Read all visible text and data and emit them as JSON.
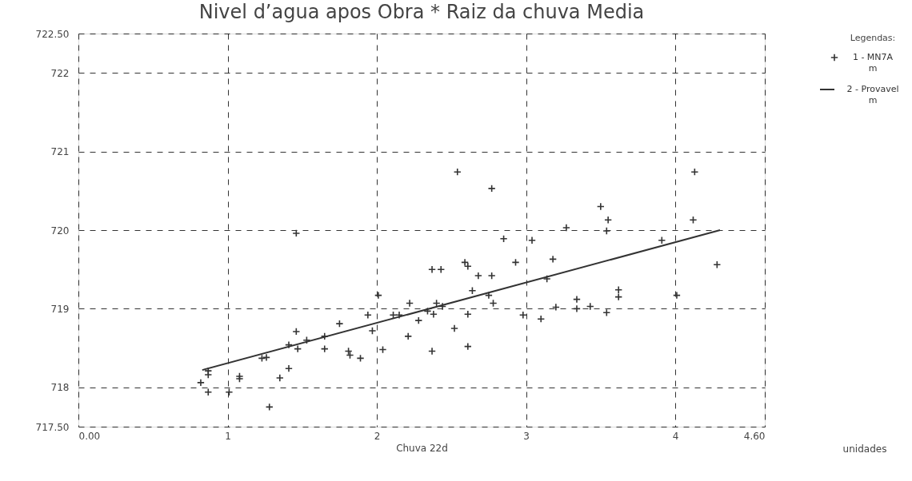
{
  "chart_data": {
    "type": "scatter",
    "title": "Nivel d’agua apos Obra * Raiz da chuva Media",
    "xlabel": "Chuva 22d",
    "legend_title": "Legendas:",
    "annotations": [
      "unidades"
    ],
    "xlim": [
      0,
      4.6
    ],
    "xticks": [
      {
        "value": 0,
        "label": "0.00"
      },
      1,
      2,
      3,
      4,
      {
        "value": 4.6,
        "label": "4.60"
      }
    ],
    "ylim": [
      717.5,
      722.5
    ],
    "yticks": [
      {
        "value": 717.5,
        "label": "717.50"
      },
      718,
      719,
      720,
      721,
      722,
      {
        "value": 722.5,
        "label": "722.50"
      }
    ],
    "grid": true,
    "legend": "right",
    "marker": "cross",
    "series": [
      {
        "name": "1 - MN7A\nm",
        "color": "#333333",
        "x": [
          0.87,
          0.87,
          0.82,
          0.87,
          1.01,
          1.08,
          1.08,
          1.28,
          1.35,
          1.41,
          1.23,
          1.26,
          1.46,
          1.41,
          1.47,
          1.53,
          1.65,
          1.65,
          1.75,
          1.81,
          1.82,
          1.89,
          1.94,
          1.97,
          2.04,
          2.01,
          2.11,
          1.46,
          2.22,
          2.4,
          2.34,
          2.38,
          2.28,
          2.21,
          2.37,
          2.52,
          2.61,
          2.61,
          2.37,
          2.43,
          2.59,
          2.61,
          2.68,
          2.77,
          2.64,
          2.75,
          2.78,
          2.85,
          3.04,
          2.93,
          3.18,
          2.54,
          2.77,
          2.98,
          3.1,
          3.14,
          3.2,
          3.34,
          3.34,
          3.43,
          3.54,
          3.62,
          3.62,
          3.27,
          3.5,
          3.55,
          3.54,
          3.91,
          4.01,
          4.13,
          4.12,
          4.28,
          2.44,
          2.15
        ],
        "values": [
          718.21,
          718.16,
          718.06,
          717.94,
          717.94,
          718.14,
          718.11,
          717.75,
          718.12,
          718.24,
          718.37,
          718.38,
          718.71,
          718.54,
          718.49,
          718.6,
          718.49,
          718.65,
          718.81,
          718.46,
          718.41,
          718.37,
          718.92,
          718.72,
          718.48,
          719.17,
          718.92,
          719.96,
          719.07,
          719.07,
          718.97,
          718.93,
          718.85,
          718.65,
          718.46,
          718.75,
          718.93,
          718.52,
          719.5,
          719.5,
          719.59,
          719.54,
          719.42,
          719.42,
          719.23,
          719.17,
          719.07,
          719.89,
          719.87,
          719.59,
          719.63,
          720.74,
          720.53,
          718.92,
          718.87,
          719.38,
          719.02,
          719.12,
          719.0,
          719.03,
          718.95,
          719.24,
          719.15,
          720.03,
          720.3,
          720.13,
          719.99,
          719.87,
          719.17,
          720.74,
          720.13,
          719.56,
          719.03,
          718.92
        ]
      },
      {
        "name": "2 - Provavel\nm",
        "type": "line",
        "color": "#333333",
        "line_style": "solid",
        "marker": "none",
        "x": [
          0.83,
          4.3
        ],
        "values": [
          718.22,
          720.0
        ]
      }
    ]
  }
}
